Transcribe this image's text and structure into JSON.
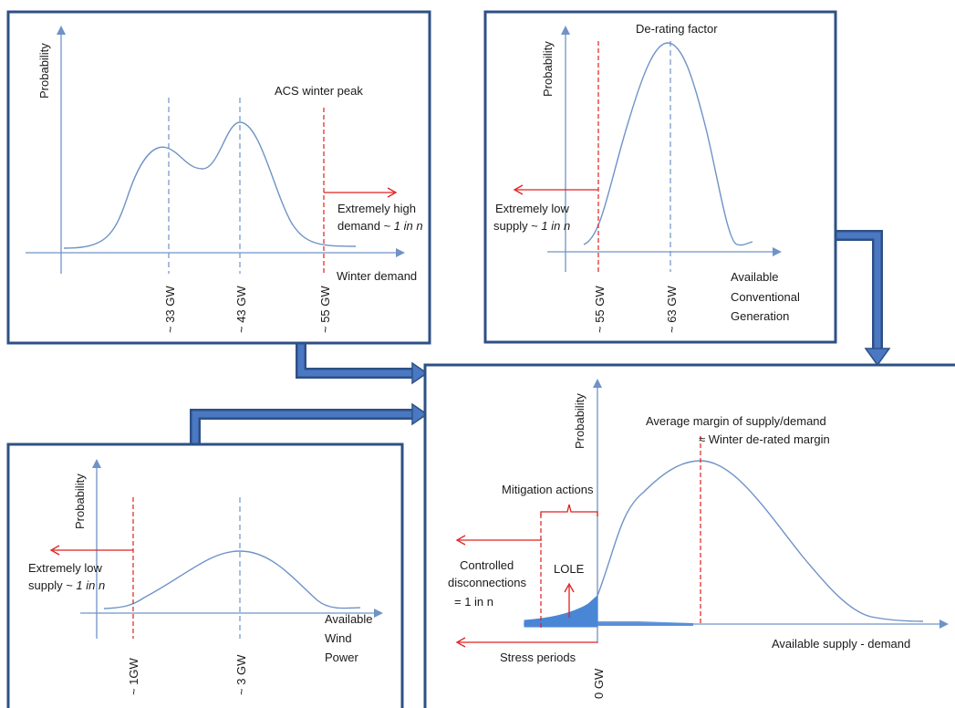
{
  "colors": {
    "box_border": "#2e5085",
    "curve": "#6f93c6",
    "threshold": "#e02020",
    "flow_arrow": "#4a78c2",
    "lole_fill": "#4a86d6"
  },
  "panel_demand": {
    "y_label": "Probability",
    "x_label": "Winter demand",
    "peak_label": "ACS winter peak",
    "tail_label_1": "Extremely high",
    "tail_label_2_prefix": "demand ~ ",
    "tail_label_2_em": "1 in n",
    "ticks": [
      "~ 33 GW",
      "~ 43 GW",
      "~ 55 GW"
    ]
  },
  "panel_conventional": {
    "y_label": "Probability",
    "peak_label": "De-rating factor",
    "tail_label_1": "Extremely low",
    "tail_label_2_prefix": "supply ~ ",
    "tail_label_2_em": "1 in n",
    "x_label_lines": [
      "Available",
      "Conventional",
      "Generation"
    ],
    "ticks": [
      "~ 55 GW",
      "~ 63 GW"
    ]
  },
  "panel_wind": {
    "y_label": "Probability",
    "tail_label_1": "Extremely low",
    "tail_label_2_prefix": "supply ~ ",
    "tail_label_2_em": "1 in n",
    "x_label_lines": [
      "Available",
      "Wind",
      "Power"
    ],
    "ticks": [
      "~ 1GW",
      "~ 3 GW"
    ]
  },
  "panel_margin": {
    "y_label": "Probability",
    "avg_label_1": "Average margin of supply/demand",
    "avg_label_2": "≈ Winter de-rated margin",
    "mitigation_label": "Mitigation actions",
    "controlled_lines": [
      "Controlled",
      "disconnections",
      "= 1 in n"
    ],
    "lole_label": "LOLE",
    "stress_label": "Stress periods",
    "x_label": "Available supply - demand",
    "tick": "0 GW"
  }
}
